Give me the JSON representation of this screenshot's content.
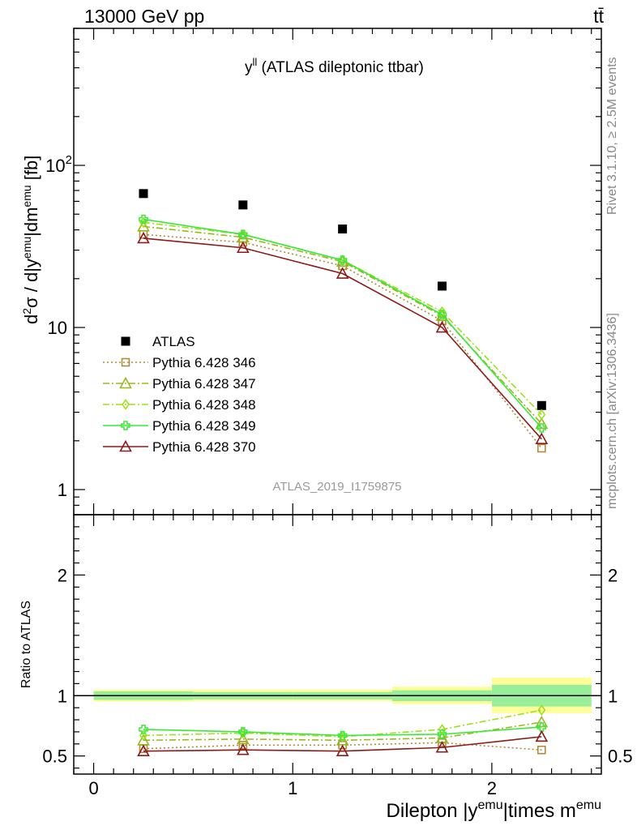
{
  "header": {
    "left": "13000 GeV pp",
    "right": "tt̄"
  },
  "side_text": {
    "top": "Rivet 3.1.10, ≥ 2.5M events",
    "bottom": "mcplots.cern.ch [arXiv:1306.3436]"
  },
  "chart_data": [
    {
      "type": "scatter",
      "title_main": "y",
      "title_sup": "ll",
      "title_rest": " (ATLAS dileptonic ttbar)",
      "watermark": "ATLAS_2019_I1759875",
      "ylabel": "d²σ / d|y^emu|dm^emu [fb]",
      "yscale": "log",
      "ylim": [
        0.7,
        700
      ],
      "xlim": [
        -0.1,
        2.55
      ],
      "ytick_labels": [
        "1",
        "10",
        "10²"
      ],
      "x": [
        0.25,
        0.75,
        1.25,
        1.75,
        2.25
      ],
      "series": [
        {
          "name": "ATLAS",
          "marker": "filled-square",
          "color": "#000000",
          "line": "none",
          "values": [
            67,
            57,
            40.5,
            18,
            3.3
          ]
        },
        {
          "name": "Pythia 6.428 346",
          "marker": "open-square",
          "color": "#b08b3c",
          "line": "dotted",
          "values": [
            37.5,
            33.5,
            24,
            11,
            1.8
          ]
        },
        {
          "name": "Pythia 6.428 347",
          "marker": "open-triangle",
          "color": "#9ab81e",
          "line": "dashdot",
          "values": [
            42,
            36,
            25.5,
            11.8,
            2.55
          ]
        },
        {
          "name": "Pythia 6.428 348",
          "marker": "open-diamond",
          "color": "#9ee01e",
          "line": "dashdot",
          "values": [
            44.5,
            37.5,
            26,
            12.5,
            2.9
          ]
        },
        {
          "name": "Pythia 6.428 349",
          "marker": "open-cross",
          "color": "#3ae83a",
          "line": "solid",
          "values": [
            46.5,
            37.5,
            26,
            12,
            2.4
          ]
        },
        {
          "name": "Pythia 6.428 370",
          "marker": "open-triangle",
          "color": "#8b1a1a",
          "line": "solid",
          "values": [
            35.5,
            31,
            21.5,
            10,
            2.05
          ]
        }
      ]
    },
    {
      "type": "scatter",
      "xlabel_main": "Dilepton |y",
      "xlabel_sup1": "emu",
      "xlabel_mid": "|times m",
      "xlabel_sup2": "emu",
      "ylabel": "Ratio to ATLAS",
      "ylim": [
        0.35,
        2.5
      ],
      "xlim": [
        -0.1,
        2.55
      ],
      "xtick_labels": [
        "0",
        "1",
        "2"
      ],
      "ytick_labels": [
        "0.5",
        "1",
        "2"
      ],
      "bands": [
        {
          "x0": 0,
          "x1": 0.5,
          "inner": [
            0.965,
            1.035
          ],
          "outer": [
            0.95,
            1.05
          ]
        },
        {
          "x0": 0.5,
          "x1": 1.0,
          "inner": [
            0.97,
            1.03
          ],
          "outer": [
            0.955,
            1.05
          ]
        },
        {
          "x0": 1.0,
          "x1": 1.5,
          "inner": [
            0.97,
            1.03
          ],
          "outer": [
            0.955,
            1.05
          ]
        },
        {
          "x0": 1.5,
          "x1": 2.0,
          "inner": [
            0.955,
            1.045
          ],
          "outer": [
            0.93,
            1.075
          ]
        },
        {
          "x0": 2.0,
          "x1": 2.5,
          "inner": [
            0.91,
            1.09
          ],
          "outer": [
            0.855,
            1.15
          ]
        }
      ],
      "x": [
        0.25,
        0.75,
        1.25,
        1.75,
        2.25
      ],
      "series": [
        {
          "name": "Pythia 6.428 346",
          "values": [
            0.56,
            0.59,
            0.59,
            0.61,
            0.55
          ]
        },
        {
          "name": "Pythia 6.428 347",
          "values": [
            0.63,
            0.64,
            0.63,
            0.65,
            0.78
          ]
        },
        {
          "name": "Pythia 6.428 348",
          "values": [
            0.67,
            0.69,
            0.66,
            0.72,
            0.88
          ]
        },
        {
          "name": "Pythia 6.428 349",
          "values": [
            0.72,
            0.7,
            0.67,
            0.68,
            0.74
          ]
        },
        {
          "name": "Pythia 6.428 370",
          "values": [
            0.54,
            0.55,
            0.54,
            0.57,
            0.66
          ]
        }
      ]
    }
  ]
}
